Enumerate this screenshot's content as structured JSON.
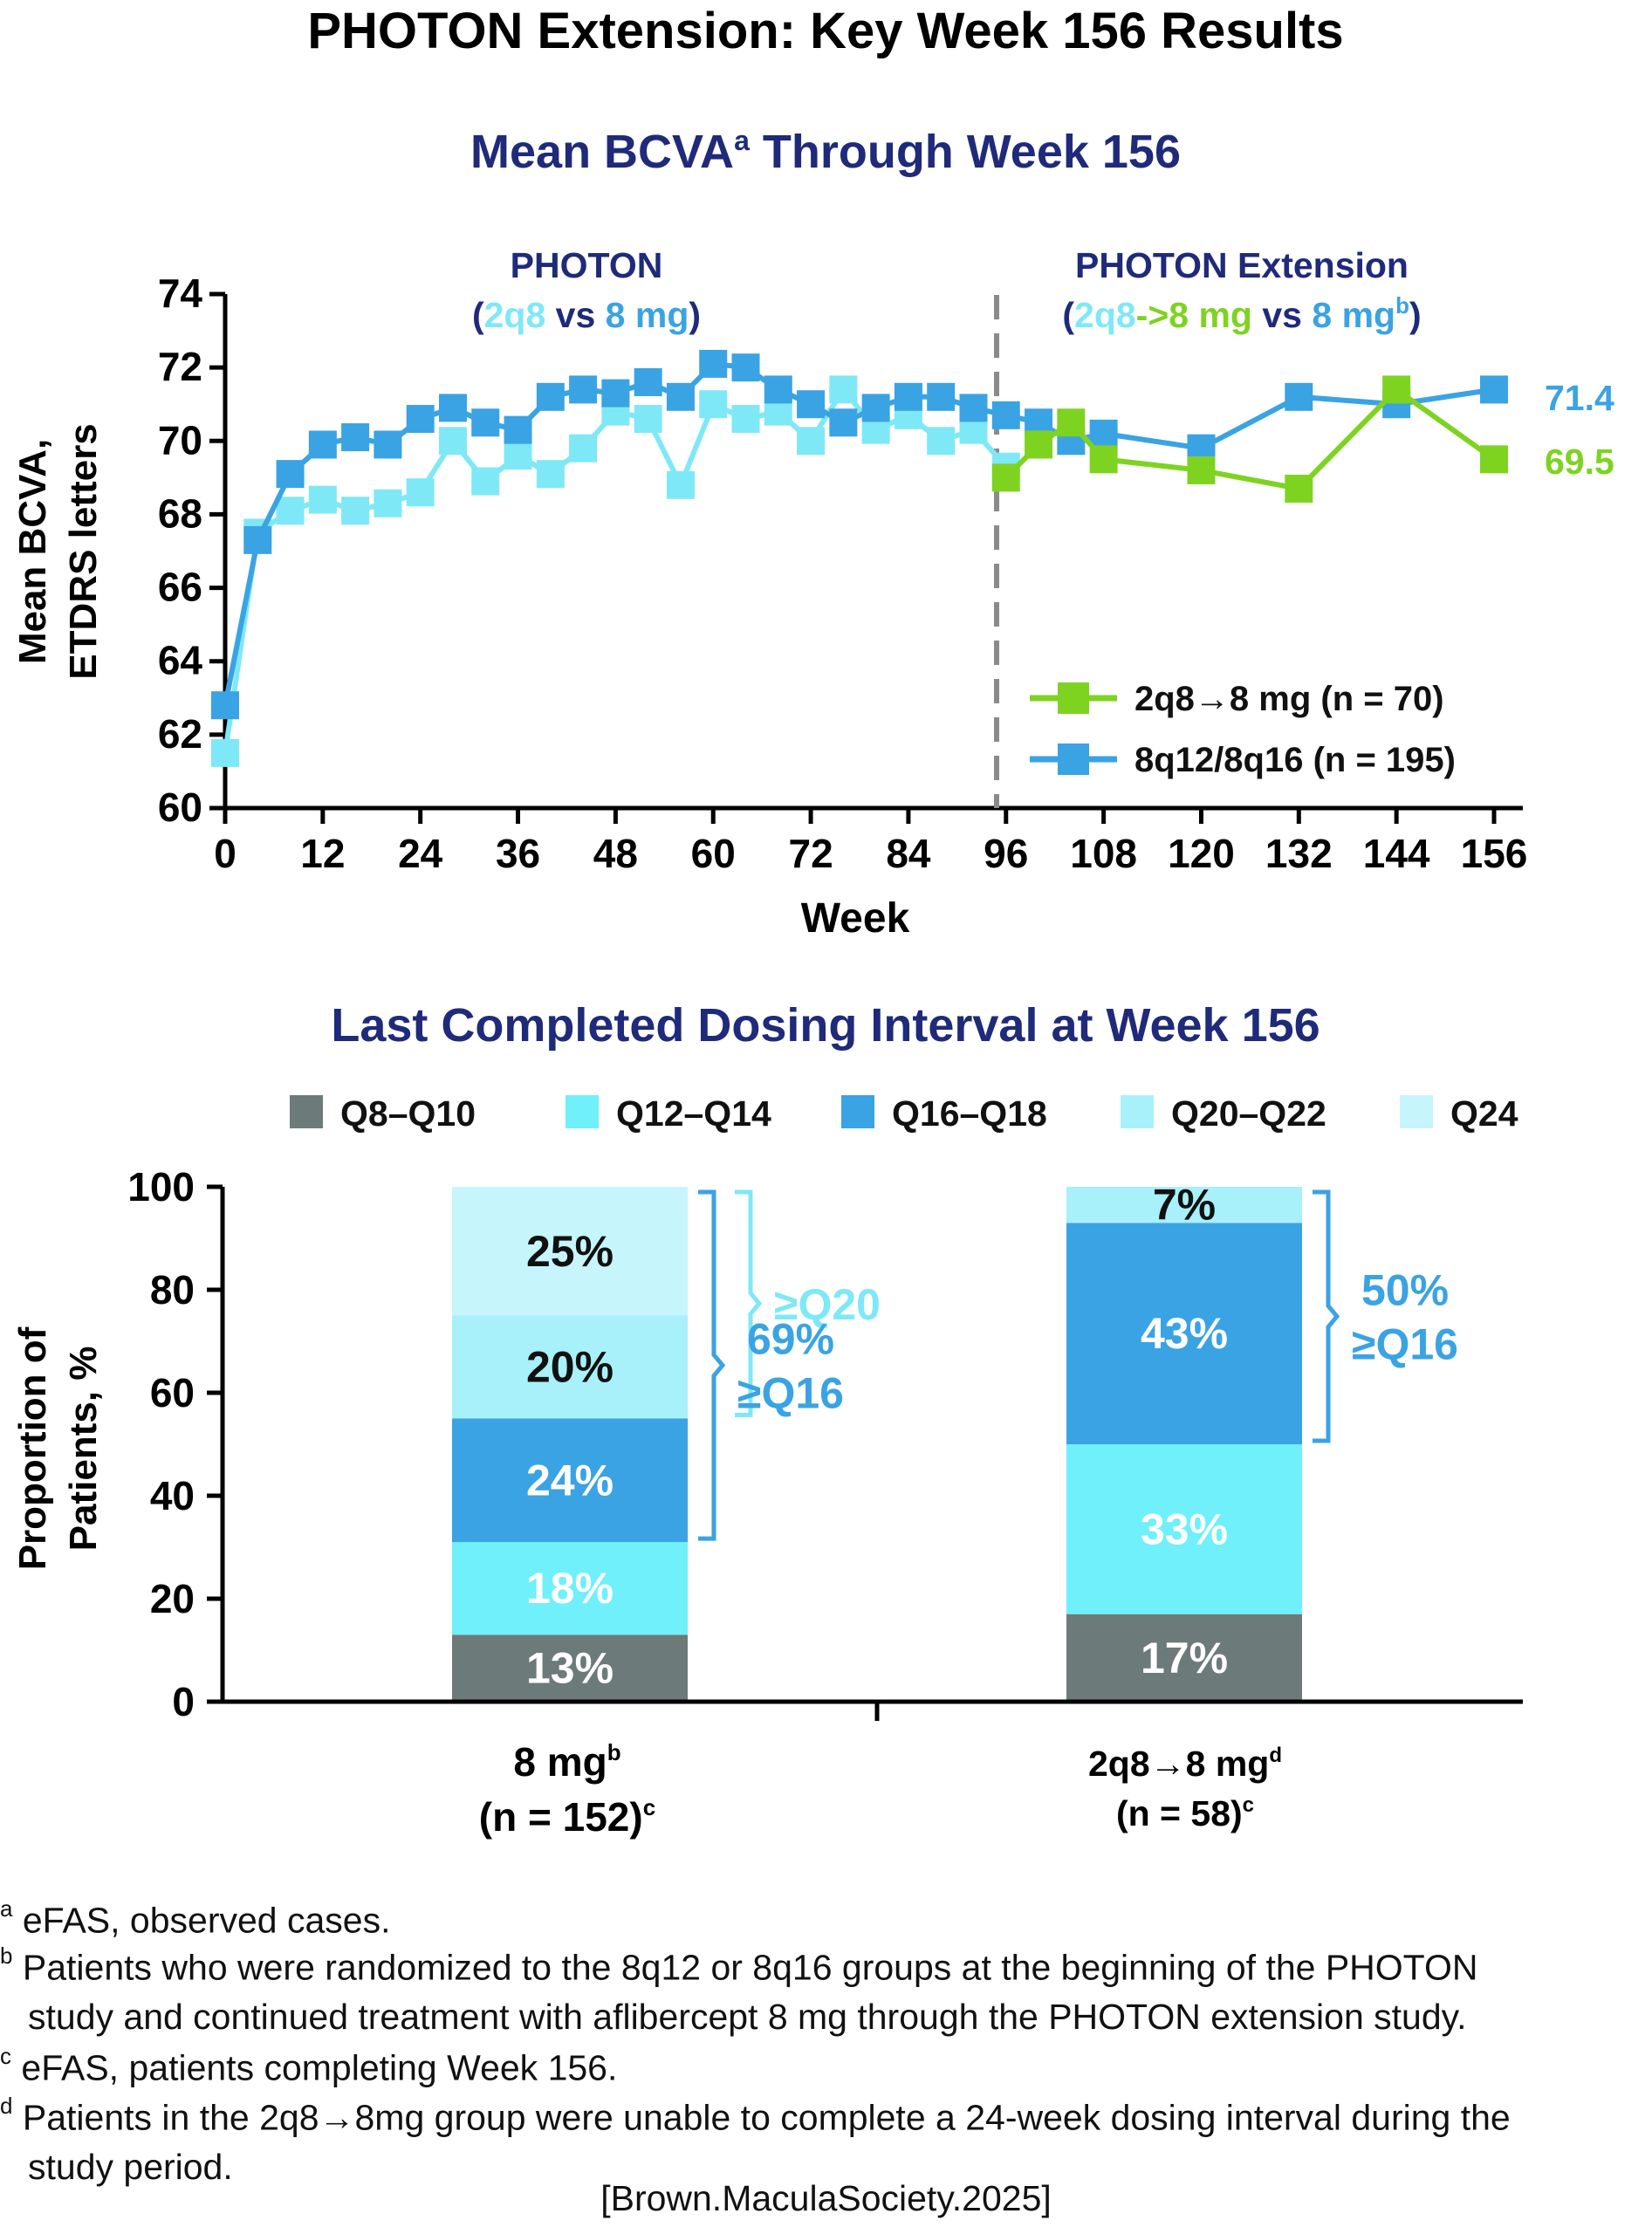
{
  "page_title": "PHOTON Extension: Key Week 156 Results",
  "colors": {
    "navy": "#1f2a7a",
    "green": "#7ed321",
    "blue": "#3aa3e3",
    "light_cyan": "#7fe8f7",
    "cyan": "#6ff0fb",
    "pale_cyan": "#c6f6fb",
    "gray": "#6d7a7a",
    "dashed": "#8a8a8a"
  },
  "chart_data": [
    {
      "type": "line",
      "title": "Mean BCVA",
      "title_sup": "a",
      "title_rest": " Through Week 156",
      "xlabel": "Week",
      "ylabel_lines": [
        "Mean BCVA,",
        "ETDRS letters"
      ],
      "xlim": [
        0,
        159
      ],
      "ylim": [
        60,
        74
      ],
      "x_ticks": [
        0,
        12,
        24,
        36,
        48,
        60,
        72,
        84,
        96,
        108,
        120,
        132,
        144,
        156
      ],
      "y_ticks": [
        60,
        62,
        64,
        66,
        68,
        70,
        72,
        74
      ],
      "divider_x": 96,
      "section_labels": {
        "left": {
          "title": "PHOTON",
          "open": "(",
          "a": "2q8",
          "mid": " vs ",
          "b": "8 mg",
          "close": ")"
        },
        "right": {
          "title": "PHOTON Extension",
          "open": "(",
          "a": "2q8",
          "arrow": "->",
          "b": "8 mg",
          "mid": " vs ",
          "c": "8 mg",
          "sup": "b",
          "close": ")"
        }
      },
      "legend": [
        "2q8→8 mg (n = 70)",
        "8q12/8q16 (n = 195)"
      ],
      "end_labels": {
        "blue": "71.4",
        "green": "69.5"
      },
      "series": [
        {
          "name": "8q12/8q16 (n = 195)",
          "color": "#3aa3e3",
          "x": [
            0,
            4,
            8,
            12,
            16,
            20,
            24,
            28,
            32,
            36,
            40,
            44,
            48,
            52,
            56,
            60,
            64,
            68,
            72,
            76,
            80,
            84,
            88,
            92,
            96,
            100,
            104,
            108,
            120,
            132,
            144,
            156
          ],
          "y": [
            62.8,
            67.3,
            69.1,
            69.9,
            70.1,
            69.9,
            70.6,
            70.9,
            70.5,
            70.3,
            71.2,
            71.4,
            71.3,
            71.6,
            71.2,
            72.1,
            72.0,
            71.4,
            71.0,
            70.5,
            70.9,
            71.2,
            71.2,
            70.9,
            70.7,
            70.5,
            70.0,
            70.2,
            69.8,
            71.2,
            71.0,
            71.4
          ]
        },
        {
          "name": "2q8 (PHOTON)",
          "color": "#7fe8f7",
          "x": [
            0,
            4,
            8,
            12,
            16,
            20,
            24,
            28,
            32,
            36,
            40,
            44,
            48,
            52,
            56,
            60,
            64,
            68,
            72,
            76,
            80,
            84,
            88,
            92,
            96
          ],
          "y": [
            61.5,
            67.5,
            68.1,
            68.4,
            68.1,
            68.3,
            68.6,
            70.0,
            68.9,
            69.6,
            69.1,
            69.8,
            70.8,
            70.6,
            68.8,
            71.0,
            70.6,
            70.8,
            70.0,
            71.4,
            70.3,
            70.7,
            70.0,
            70.3,
            69.3
          ]
        },
        {
          "name": "2q8→8 mg (n = 70)",
          "color": "#7ed321",
          "x": [
            96,
            100,
            104,
            108,
            120,
            132,
            144,
            156
          ],
          "y": [
            69.0,
            69.9,
            70.5,
            69.5,
            69.2,
            68.7,
            71.4,
            69.5
          ]
        }
      ]
    },
    {
      "type": "bar",
      "stacked": true,
      "title": "Last Completed Dosing Interval at Week 156",
      "ylabel_lines": [
        "Proportion of",
        "Patients, %"
      ],
      "ylim": [
        0,
        100
      ],
      "y_ticks": [
        0,
        20,
        40,
        60,
        80,
        100
      ],
      "y_tick_labels": [
        "0",
        "20",
        "40",
        "60",
        "80",
        "100"
      ],
      "categories": [
        {
          "label": "8 mg",
          "label_sup": "b",
          "n": "(n = 152)",
          "n_sup": "c"
        },
        {
          "label": "2q8→8 mg",
          "label_sup": "d",
          "n": "(n = 58)",
          "n_sup": "c"
        }
      ],
      "series": [
        {
          "name": "Q8–Q10",
          "color": "#6d7a7a",
          "values": [
            13,
            17
          ],
          "labels": [
            "13%",
            "17%"
          ],
          "label_color": "#ffffff"
        },
        {
          "name": "Q12–Q14",
          "color": "#6ff0fb",
          "values": [
            18,
            33
          ],
          "labels": [
            "18%",
            "33%"
          ],
          "label_color": "#ffffff"
        },
        {
          "name": "Q16–Q18",
          "color": "#3aa3e3",
          "values": [
            24,
            43
          ],
          "labels": [
            "24%",
            "43%"
          ],
          "label_color": "#ffffff"
        },
        {
          "name": "Q20–Q22",
          "color": "#a8f1fa",
          "values": [
            20,
            7
          ],
          "labels": [
            "20%",
            "7%"
          ],
          "label_color": "#111111"
        },
        {
          "name": "Q24",
          "color": "#c6f6fb",
          "values": [
            25,
            0
          ],
          "labels": [
            "25%",
            ""
          ],
          "label_color": "#111111"
        }
      ],
      "brackets": [
        {
          "bar": 0,
          "from": 55,
          "to": 100,
          "text": [
            "≥Q20"
          ],
          "color": "#7fe8f7",
          "offset": 1
        },
        {
          "bar": 0,
          "from": 31,
          "to": 100,
          "text": [
            "69%",
            "≥Q16"
          ],
          "color": "#3aa3e3",
          "offset": 0
        },
        {
          "bar": 1,
          "from": 50,
          "to": 100,
          "text": [
            "50%",
            "≥Q16"
          ],
          "color": "#3aa3e3",
          "offset": 0
        }
      ]
    }
  ],
  "footnotes": [
    {
      "mark": "a",
      "lines": [
        "eFAS, observed cases."
      ]
    },
    {
      "mark": "b",
      "lines": [
        "Patients who were randomized to the 8q12 or 8q16 groups at the beginning of the PHOTON",
        "study and continued treatment with aflibercept 8 mg through the PHOTON extension study."
      ]
    },
    {
      "mark": "c",
      "lines": [
        "eFAS, patients completing Week 156."
      ]
    },
    {
      "mark": "d",
      "lines": [
        "Patients in the 2q8→8mg group were unable to complete a 24-week dosing interval during the",
        "study period."
      ]
    }
  ],
  "citation": "[Brown.MaculaSociety.2025]"
}
